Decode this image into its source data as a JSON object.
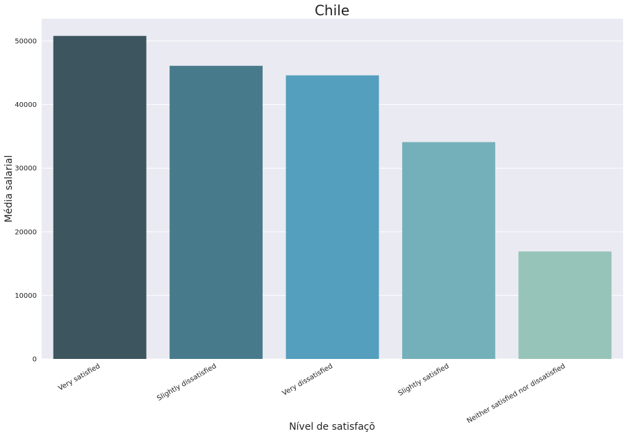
{
  "chart_data": {
    "type": "bar",
    "title": "Chile",
    "xlabel": "Nível de satisfaçõ",
    "ylabel": "Média salarial",
    "categories": [
      "Very satisfied",
      "Slightly dissatisfied",
      "Very dissatisfied",
      "Slightly satisfied",
      "Neither satisfied nor dissatisfied"
    ],
    "values": [
      50800,
      46100,
      44600,
      34100,
      16900
    ],
    "ylim": [
      0,
      53500
    ],
    "yticks": [
      0,
      10000,
      20000,
      30000,
      40000,
      50000
    ],
    "grid": true,
    "background": "#eaeaf2",
    "colors": [
      "#3d555f",
      "#477b8c",
      "#539fbd",
      "#74b0b9",
      "#97c4b8"
    ]
  }
}
